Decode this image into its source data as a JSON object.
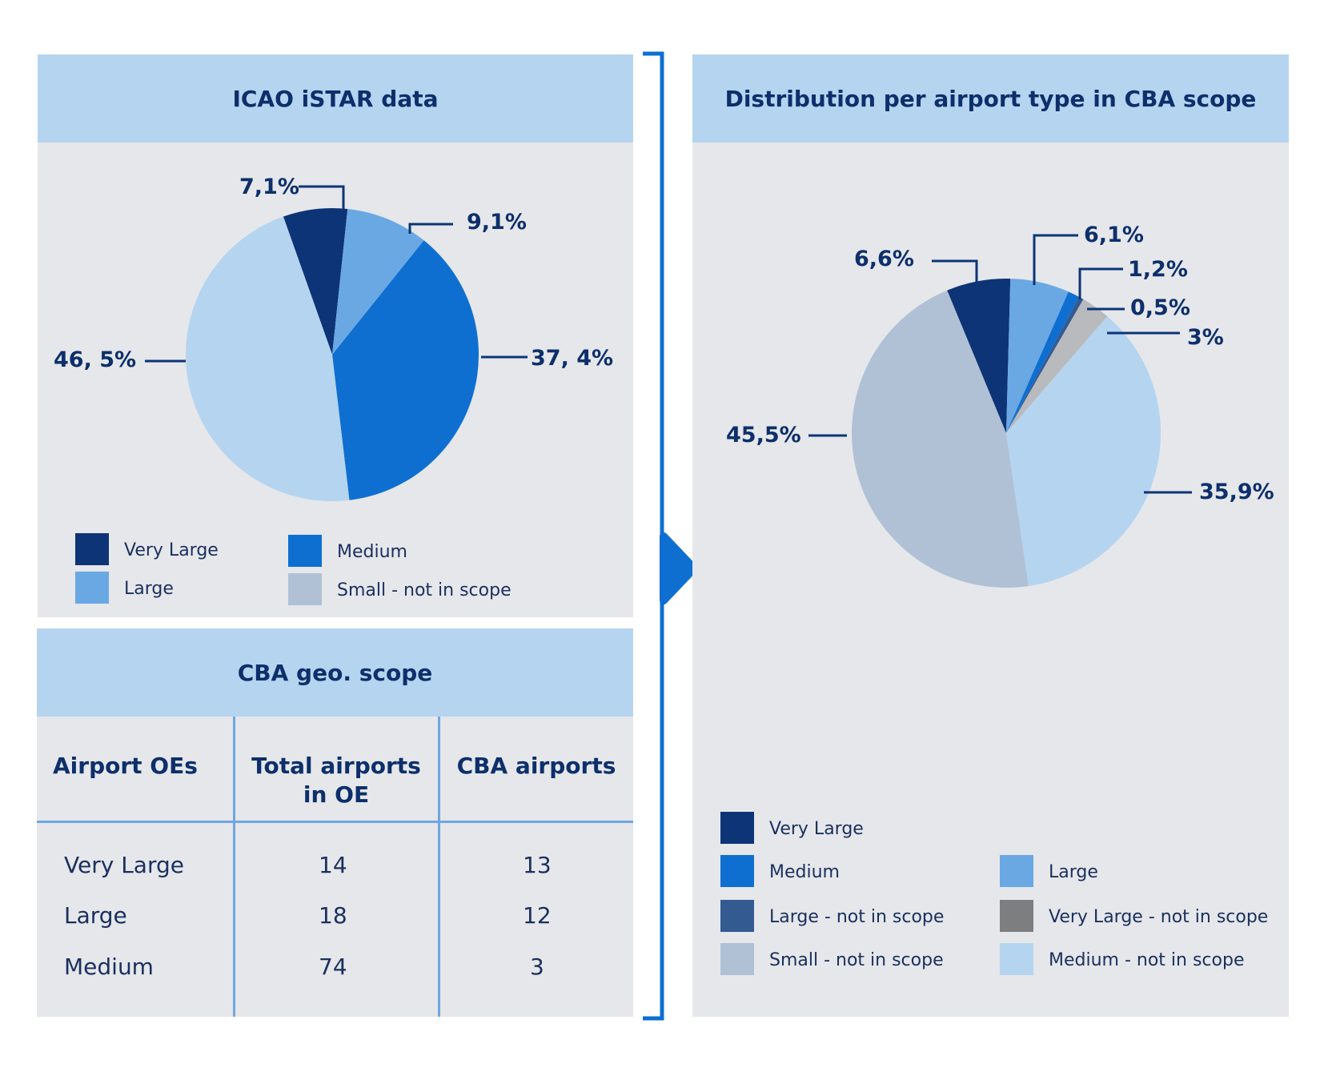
{
  "left_chart": {
    "title": "ICAO iSTAR data",
    "legend": [
      {
        "label": "Very Large",
        "color": "#0d3476"
      },
      {
        "label": "Medium",
        "color": "#0e6fd1"
      },
      {
        "label": "Large",
        "color": "#6aa8e4"
      },
      {
        "label": "Small - not in scope",
        "color": "#b0c1d6"
      }
    ]
  },
  "right_chart": {
    "title": "Distribution per airport type in CBA scope",
    "legend": [
      {
        "label": "Very Large",
        "color": "#0d3476"
      },
      {
        "label": "Medium",
        "color": "#0e6fd1"
      },
      {
        "label": "Large",
        "color": "#6aa8e4"
      },
      {
        "label": "Large - not in scope",
        "color": "#335b91"
      },
      {
        "label": "Very Large - not in scope",
        "color": "#7d7e80"
      },
      {
        "label": "Small - not in scope",
        "color": "#b0c1d6"
      },
      {
        "label": "Medium - not in scope",
        "color": "#b5d4f0"
      }
    ]
  },
  "chart_data": [
    {
      "type": "pie",
      "title": "ICAO iSTAR data",
      "slices": [
        {
          "name": "Very Large",
          "value": 7.1,
          "label": "7,1%",
          "color": "#0d3476"
        },
        {
          "name": "Large",
          "value": 9.1,
          "label": "9,1%",
          "color": "#6aa8e4"
        },
        {
          "name": "Medium",
          "value": 37.4,
          "label": "37, 4%",
          "color": "#0e6fd1"
        },
        {
          "name": "Small - not in scope",
          "value": 46.5,
          "label": "46, 5%",
          "color": "#b5d4f0"
        }
      ]
    },
    {
      "type": "pie",
      "title": "Distribution per airport type in CBA scope",
      "slices": [
        {
          "name": "Very Large",
          "value": 6.6,
          "label": "6,6%",
          "color": "#0d3476"
        },
        {
          "name": "Large",
          "value": 6.1,
          "label": "6,1%",
          "color": "#6aa8e4"
        },
        {
          "name": "Medium",
          "value": 1.2,
          "label": "1,2%",
          "color": "#0e6fd1"
        },
        {
          "name": "Large - not in scope",
          "value": 0.5,
          "label": "0,5%",
          "color": "#335b91"
        },
        {
          "name": "Very Large - not in scope",
          "value": 3,
          "label": "3%",
          "color": "#b9babd"
        },
        {
          "name": "Medium - not in scope",
          "value": 35.9,
          "label": "35,9%",
          "color": "#b5d4f0"
        },
        {
          "name": "Small - not in scope",
          "value": 45.5,
          "label": "45,5%",
          "color": "#b0c1d6"
        }
      ]
    },
    {
      "type": "table",
      "title": "CBA geo. scope",
      "columns": [
        "Airport OEs",
        "Total airports in OE",
        "CBA airports"
      ],
      "rows": [
        [
          "Very Large",
          "14",
          "13"
        ],
        [
          "Large",
          "18",
          "12"
        ],
        [
          "Medium",
          "74",
          "3"
        ]
      ]
    }
  ],
  "table": {
    "title": "CBA geo. scope",
    "headers": [
      "Airport OEs",
      "Total airports in OE",
      "CBA airports"
    ],
    "rows": [
      [
        "Very Large",
        "14",
        "13"
      ],
      [
        "Large",
        "18",
        "12"
      ],
      [
        "Medium",
        "74",
        "3"
      ]
    ]
  }
}
